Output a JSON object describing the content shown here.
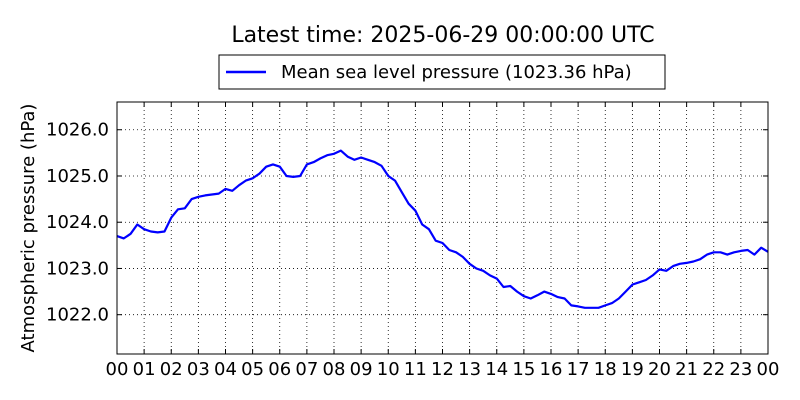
{
  "chart_data": {
    "type": "line",
    "title": "Latest time: 2025-06-29 00:00:00 UTC",
    "xlabel": "",
    "ylabel": "Atmospheric pressure (hPa)",
    "xlim": [
      0,
      24
    ],
    "ylim": [
      1021.15,
      1026.6
    ],
    "x_tick_labels": [
      "00",
      "01",
      "02",
      "03",
      "04",
      "05",
      "06",
      "07",
      "08",
      "09",
      "10",
      "11",
      "12",
      "13",
      "14",
      "15",
      "16",
      "17",
      "18",
      "19",
      "20",
      "21",
      "22",
      "23",
      "00"
    ],
    "y_ticks": [
      1022.0,
      1023.0,
      1024.0,
      1025.0,
      1026.0
    ],
    "y_tick_labels": [
      "1022.0",
      "1023.0",
      "1024.0",
      "1025.0",
      "1026.0"
    ],
    "grid": true,
    "legend_position": "top-center",
    "colors": {
      "series": "#0000ff"
    },
    "series": [
      {
        "name": "Mean sea level pressure (1023.36 hPa)",
        "x": [
          0,
          0.25,
          0.5,
          0.75,
          1,
          1.25,
          1.5,
          1.75,
          2,
          2.25,
          2.5,
          2.75,
          3,
          3.25,
          3.5,
          3.75,
          4,
          4.25,
          4.5,
          4.75,
          5,
          5.25,
          5.5,
          5.75,
          6,
          6.25,
          6.5,
          6.75,
          7,
          7.25,
          7.5,
          7.75,
          8,
          8.25,
          8.5,
          8.75,
          9,
          9.25,
          9.5,
          9.75,
          10,
          10.25,
          10.5,
          10.75,
          11,
          11.25,
          11.5,
          11.75,
          12,
          12.25,
          12.5,
          12.75,
          13,
          13.25,
          13.5,
          13.75,
          14,
          14.25,
          14.5,
          14.75,
          15,
          15.25,
          15.5,
          15.75,
          16,
          16.25,
          16.5,
          16.75,
          17,
          17.25,
          17.5,
          17.75,
          18,
          18.25,
          18.5,
          18.75,
          19,
          19.25,
          19.5,
          19.75,
          20,
          20.25,
          20.5,
          20.75,
          21,
          21.25,
          21.5,
          21.75,
          22,
          22.25,
          22.5,
          22.75,
          23,
          23.25,
          23.5,
          23.75,
          24
        ],
        "values": [
          1023.7,
          1023.65,
          1023.75,
          1023.95,
          1023.85,
          1023.8,
          1023.78,
          1023.8,
          1024.1,
          1024.28,
          1024.3,
          1024.5,
          1024.55,
          1024.58,
          1024.6,
          1024.62,
          1024.72,
          1024.68,
          1024.8,
          1024.9,
          1024.95,
          1025.05,
          1025.2,
          1025.25,
          1025.2,
          1025.0,
          1024.98,
          1025.0,
          1025.25,
          1025.3,
          1025.38,
          1025.45,
          1025.48,
          1025.55,
          1025.42,
          1025.35,
          1025.4,
          1025.35,
          1025.3,
          1025.22,
          1025.0,
          1024.9,
          1024.65,
          1024.4,
          1024.25,
          1023.95,
          1023.85,
          1023.6,
          1023.55,
          1023.4,
          1023.35,
          1023.25,
          1023.1,
          1023.0,
          1022.95,
          1022.85,
          1022.78,
          1022.6,
          1022.62,
          1022.5,
          1022.4,
          1022.35,
          1022.42,
          1022.5,
          1022.45,
          1022.38,
          1022.35,
          1022.2,
          1022.18,
          1022.15,
          1022.15,
          1022.15,
          1022.2,
          1022.25,
          1022.35,
          1022.5,
          1022.65,
          1022.7,
          1022.75,
          1022.85,
          1022.98,
          1022.95,
          1023.05,
          1023.1,
          1023.12,
          1023.15,
          1023.2,
          1023.3,
          1023.35,
          1023.35,
          1023.3,
          1023.35,
          1023.38,
          1023.4,
          1023.3,
          1023.45,
          1023.36
        ]
      }
    ]
  }
}
